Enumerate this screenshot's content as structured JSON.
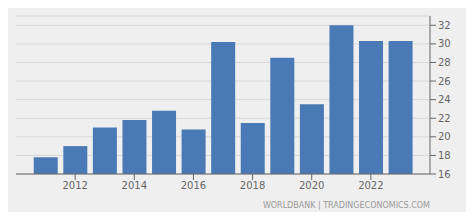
{
  "chart_data": {
    "type": "bar",
    "x": [
      2011,
      2012,
      2013,
      2014,
      2015,
      2016,
      2017,
      2018,
      2019,
      2020,
      2021,
      2022,
      2023
    ],
    "values": [
      17.8,
      19.0,
      21.0,
      21.8,
      22.8,
      20.8,
      30.2,
      21.5,
      28.5,
      23.5,
      32.0,
      30.3,
      30.3
    ],
    "color": "#4a7ab5",
    "xlim": [
      2010.0,
      2024.0
    ],
    "xticks": [
      2012,
      2014,
      2016,
      2018,
      2020,
      2022
    ],
    "ylim": [
      16,
      33
    ],
    "yticks": [
      16,
      18,
      20,
      22,
      24,
      26,
      28,
      30,
      32
    ],
    "grid": true,
    "annotations": [
      "WORLDBANK | TRADINGECONOMICS.COM"
    ]
  }
}
